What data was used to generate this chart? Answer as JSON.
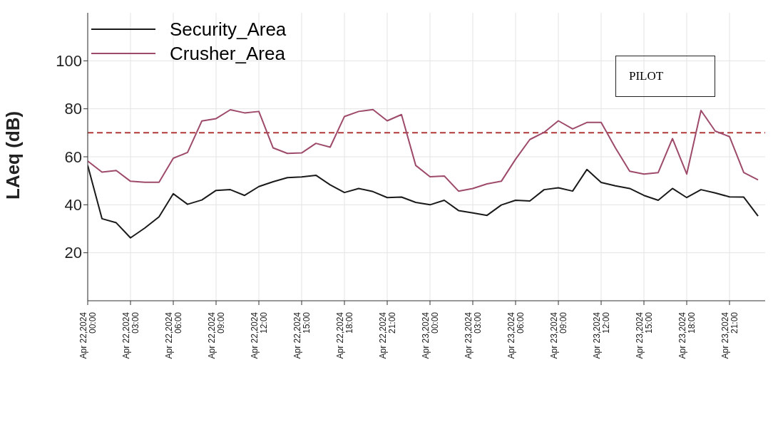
{
  "chart_data": {
    "type": "line",
    "ylabel": "LAeq (dB)",
    "x": [
      "2024-04-22T00:00",
      "2024-04-22T01:00",
      "2024-04-22T02:00",
      "2024-04-22T03:00",
      "2024-04-22T04:00",
      "2024-04-22T05:00",
      "2024-04-22T06:00",
      "2024-04-22T07:00",
      "2024-04-22T08:00",
      "2024-04-22T09:00",
      "2024-04-22T10:00",
      "2024-04-22T11:00",
      "2024-04-22T12:00",
      "2024-04-22T13:00",
      "2024-04-22T14:00",
      "2024-04-22T15:00",
      "2024-04-22T16:00",
      "2024-04-22T17:00",
      "2024-04-22T18:00",
      "2024-04-22T19:00",
      "2024-04-22T20:00",
      "2024-04-22T21:00",
      "2024-04-22T22:00",
      "2024-04-22T23:00",
      "2024-04-23T00:00",
      "2024-04-23T01:00",
      "2024-04-23T02:00",
      "2024-04-23T03:00",
      "2024-04-23T04:00",
      "2024-04-23T05:00",
      "2024-04-23T06:00",
      "2024-04-23T07:00",
      "2024-04-23T08:00",
      "2024-04-23T09:00",
      "2024-04-23T10:00",
      "2024-04-23T11:00",
      "2024-04-23T12:00",
      "2024-04-23T13:00",
      "2024-04-23T14:00",
      "2024-04-23T15:00",
      "2024-04-23T16:00",
      "2024-04-23T17:00",
      "2024-04-23T18:00",
      "2024-04-23T19:00",
      "2024-04-23T20:00",
      "2024-04-23T21:00",
      "2024-04-23T22:00",
      "2024-04-23T23:00"
    ],
    "series": [
      {
        "name": "Security_Area",
        "color": "#1a1a1a",
        "values": [
          56.4,
          34.2,
          32.5,
          26.2,
          30.3,
          35,
          44.6,
          40.2,
          42,
          46,
          46.3,
          43.9,
          47.6,
          49.6,
          51.3,
          51.6,
          52.3,
          48.3,
          45.1,
          46.8,
          45.5,
          43,
          43.2,
          41,
          40,
          41.9,
          37.6,
          36.6,
          35.6,
          39.9,
          41.9,
          41.6,
          46.3,
          47.1,
          45.7,
          54.7,
          49.3,
          47.9,
          46.8,
          43.9,
          41.9,
          46.8,
          43,
          46.3,
          44.9,
          43.3,
          43.2,
          35.3
        ]
      },
      {
        "name": "Crusher_Area",
        "color": "#9e4a6a",
        "values": [
          58.2,
          53.6,
          54.3,
          49.8,
          49.4,
          49.4,
          59.4,
          61.8,
          74.9,
          75.9,
          79.6,
          78.3,
          78.9,
          63.7,
          61.4,
          61.6,
          65.6,
          64,
          76.8,
          78.9,
          79.7,
          75,
          77.6,
          56.4,
          51.7,
          52,
          45.7,
          46.8,
          48.7,
          49.8,
          59,
          67.2,
          70.2,
          75,
          71.6,
          74.3,
          74.3,
          63.7,
          54,
          52.8,
          53.4,
          67.6,
          52.8,
          79.3,
          70.7,
          68.4,
          53.4,
          50.4
        ]
      }
    ],
    "xlim": [
      "2024-04-22T00:00",
      "2024-04-23T23:30"
    ],
    "xticks": [
      {
        "value": "2024-04-22T00:00",
        "label": "Apr 22,2024\n00:00"
      },
      {
        "value": "2024-04-22T03:00",
        "label": "Apr 22,2024\n03:00"
      },
      {
        "value": "2024-04-22T06:00",
        "label": "Apr 22,2024\n06:00"
      },
      {
        "value": "2024-04-22T09:00",
        "label": "Apr 22,2024\n09:00"
      },
      {
        "value": "2024-04-22T12:00",
        "label": "Apr 22,2024\n12:00"
      },
      {
        "value": "2024-04-22T15:00",
        "label": "Apr 22,2024\n15:00"
      },
      {
        "value": "2024-04-22T18:00",
        "label": "Apr 22,2024\n18:00"
      },
      {
        "value": "2024-04-22T21:00",
        "label": "Apr 22,2024\n21:00"
      },
      {
        "value": "2024-04-23T00:00",
        "label": "Apr 23,2024\n00:00"
      },
      {
        "value": "2024-04-23T03:00",
        "label": "Apr 23,2024\n03:00"
      },
      {
        "value": "2024-04-23T06:00",
        "label": "Apr 23,2024\n06:00"
      },
      {
        "value": "2024-04-23T09:00",
        "label": "Apr 23,2024\n09:00"
      },
      {
        "value": "2024-04-23T12:00",
        "label": "Apr 23,2024\n12:00"
      },
      {
        "value": "2024-04-23T15:00",
        "label": "Apr 23,2024\n15:00"
      },
      {
        "value": "2024-04-23T18:00",
        "label": "Apr 23,2024\n18:00"
      },
      {
        "value": "2024-04-23T21:00",
        "label": "Apr 23,2024\n21:00"
      }
    ],
    "ylim": [
      0,
      120
    ],
    "yticks": [
      20,
      40,
      60,
      80,
      100
    ],
    "ref_lines": [
      {
        "axis": "y",
        "value": 70,
        "color": "#b03a3a",
        "line_style": "dashed"
      }
    ],
    "annotations": [
      "PILOT"
    ],
    "grid": true,
    "legend": "top left",
    "marker": "none",
    "line_style": "solid"
  }
}
